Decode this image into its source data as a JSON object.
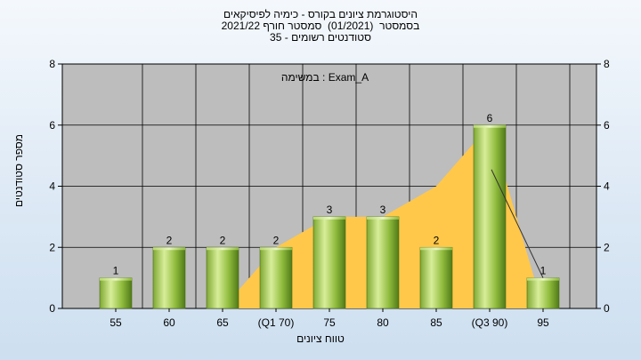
{
  "chart_data": {
    "type": "bar",
    "title_lines": [
      "היסטוגרמת ציונים בקורס - כימיה לפיסיקאים",
      "בסמסטר  (01/2021)  סמסטר חורף 2021/22",
      "סטודנטים רשומים - 35"
    ],
    "annotation": "במשימה : Exam_A",
    "xlabel": "טווח ציונים",
    "ylabel": "מספר סטודנטים",
    "categories": [
      "55",
      "60",
      "65",
      "(Q1 70)",
      "75",
      "80",
      "85",
      "(Q3 90)",
      "95"
    ],
    "values": [
      1,
      2,
      2,
      2,
      3,
      3,
      2,
      6,
      1
    ],
    "data_labels": [
      "1",
      "2",
      "2",
      "2",
      "3",
      "3",
      "2",
      "6",
      "1"
    ],
    "area_series": [
      0,
      0,
      0,
      2,
      3,
      3,
      4,
      6,
      0
    ],
    "ylim": [
      0,
      8
    ],
    "yticks": [
      0,
      2,
      4,
      6,
      8
    ],
    "grid": true,
    "colors": {
      "plot_bg": "#bdbdbd",
      "grid": "#000000",
      "bar_light": "#d8ee9a",
      "bar_mid": "#9cc545",
      "bar_dark": "#4f7a18",
      "area": "#ffc84a",
      "line": "#333333"
    }
  }
}
